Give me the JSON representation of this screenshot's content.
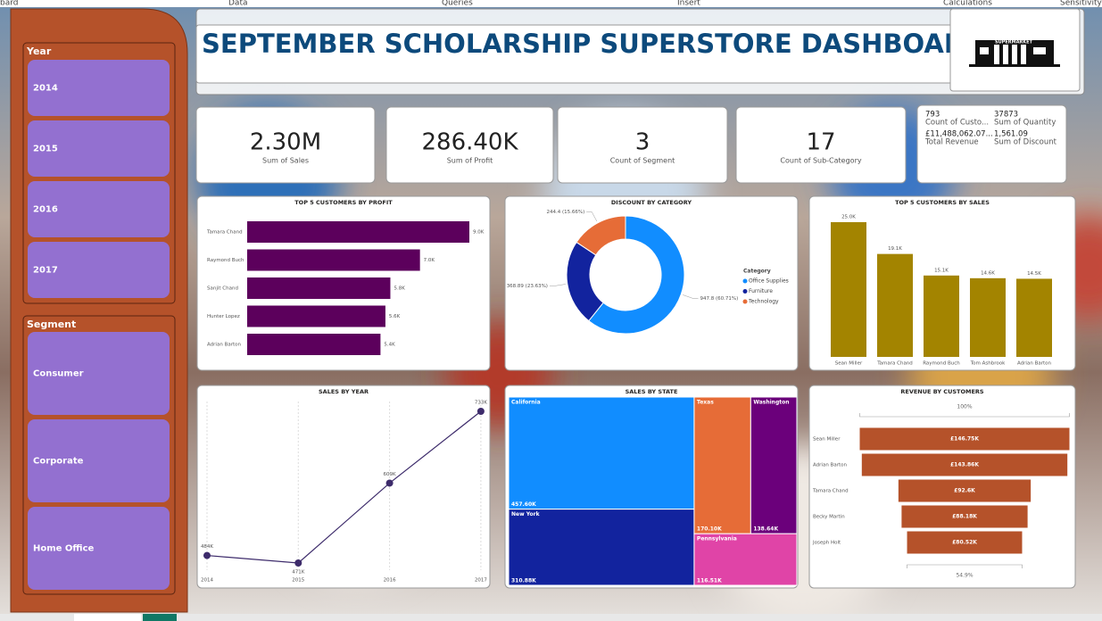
{
  "menu": [
    "bard",
    "Data",
    "Queries",
    "Insert",
    "Calculations",
    "Sensitivity"
  ],
  "slicers": [
    {
      "title": "Year",
      "items": [
        "2014",
        "2015",
        "2016",
        "2017"
      ]
    },
    {
      "title": "Segment",
      "items": [
        "Consumer",
        "Corporate",
        "Home Office"
      ]
    }
  ],
  "title": "SEPTEMBER SCHOLARSHIP SUPERSTORE DASHBOARD",
  "logo_text": "SUPERMARKET",
  "cards": [
    {
      "value": "2.30M",
      "label": "Sum of Sales"
    },
    {
      "value": "286.40K",
      "label": "Sum of Profit"
    },
    {
      "value": "3",
      "label": "Count of Segment"
    },
    {
      "value": "17",
      "label": "Count of Sub-Category"
    }
  ],
  "multi_card": [
    {
      "value": "793",
      "label": "Count of Custo..."
    },
    {
      "value": "37873",
      "label": "Sum of Quantity"
    },
    {
      "value": "£11,488,062.07...",
      "label": "Total Revenue"
    },
    {
      "value": "1,561.09",
      "label": "Sum of Discount"
    }
  ],
  "chart_data": [
    {
      "type": "barh",
      "title": "TOP 5 CUSTOMERS BY PROFIT",
      "color": "#5c005c",
      "categories": [
        "Tamara Chand",
        "Raymond Buch",
        "Sanjit Chand",
        "Hunter Lopez",
        "Adrian Barton"
      ],
      "values": [
        9000,
        7000,
        5800,
        5600,
        5400
      ],
      "value_labels": [
        "9.0K",
        "7.0K",
        "5.8K",
        "5.6K",
        "5.4K"
      ]
    },
    {
      "type": "donut",
      "title": "DISCOUNT BY CATEGORY",
      "legend_title": "Category",
      "series": [
        {
          "name": "Office Supplies",
          "color": "#118dff",
          "values": [
            947.8
          ]
        },
        {
          "name": "Furniture",
          "color": "#12239e",
          "values": [
            368.89
          ]
        },
        {
          "name": "Technology",
          "color": "#e66c37",
          "values": [
            244.4
          ]
        }
      ],
      "value_labels": [
        "947.8 (60.71%)",
        "368.89 (23.63%)",
        "244.4 (15.66%)"
      ]
    },
    {
      "type": "column",
      "title": "TOP 5 CUSTOMERS BY SALES",
      "color": "#a38400",
      "categories": [
        "Sean Miller",
        "Tamara Chand",
        "Raymond Buch",
        "Tom Ashbrook",
        "Adrian Barton"
      ],
      "values": [
        25000,
        19100,
        15100,
        14600,
        14500
      ],
      "value_labels": [
        "25.0K",
        "19.1K",
        "15.1K",
        "14.6K",
        "14.5K"
      ]
    },
    {
      "type": "line",
      "title": "SALES BY YEAR",
      "color": "#3d2b6b",
      "categories": [
        "2014",
        "2015",
        "2016",
        "2017"
      ],
      "values": [
        484000,
        471000,
        609000,
        733000
      ],
      "value_labels": [
        "484K",
        "471K",
        "609K",
        "733K"
      ]
    },
    {
      "type": "treemap",
      "title": "SALES BY STATE",
      "categories": [
        "California",
        "New York",
        "Texas",
        "Washington",
        "Pennsylvania"
      ],
      "colors": [
        "#118dff",
        "#12239e",
        "#e66c37",
        "#6b007b",
        "#e044a7"
      ],
      "values": [
        457600,
        310880,
        170100,
        138640,
        116510
      ],
      "value_labels": [
        "457.60K",
        "310.88K",
        "170.10K",
        "138.64K",
        "116.51K"
      ]
    },
    {
      "type": "funnel",
      "title": "REVENUE BY CUSTOMERS",
      "color": "#b5522a",
      "categories": [
        "Sean Miller",
        "Adrian Barton",
        "Tamara Chand",
        "Becky Martin",
        "Joseph Holt"
      ],
      "values": [
        146750,
        143860,
        92600,
        88180,
        80520
      ],
      "value_labels": [
        "£146.75K",
        "£143.86K",
        "£92.6K",
        "£88.18K",
        "£80.52K"
      ],
      "top_label": "100%",
      "bottom_label": "54.9%"
    }
  ]
}
